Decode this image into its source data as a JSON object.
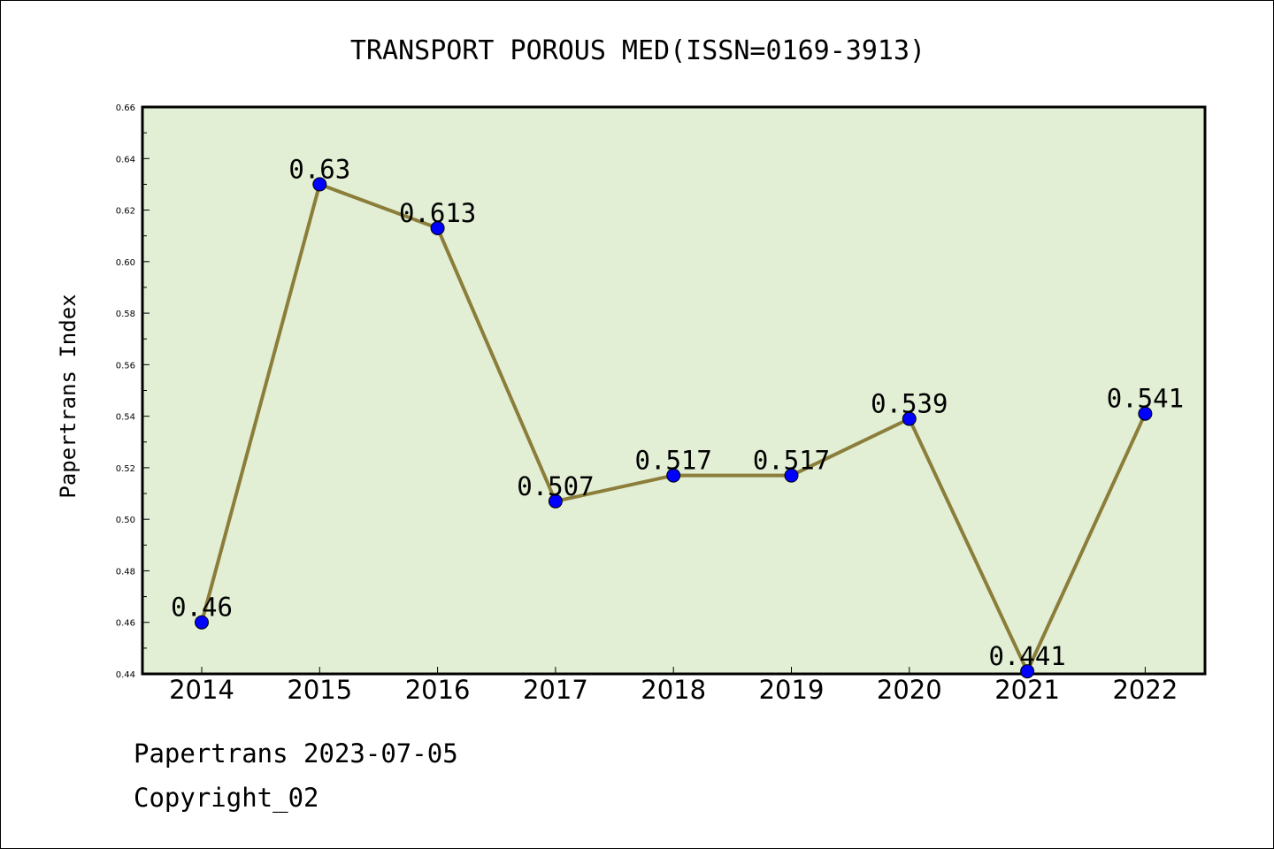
{
  "chart_data": {
    "type": "line",
    "title": "TRANSPORT POROUS MED(ISSN=0169-3913)",
    "xlabel": "",
    "ylabel": "Papertrans Index",
    "categories": [
      "2014",
      "2015",
      "2016",
      "2017",
      "2018",
      "2019",
      "2020",
      "2021",
      "2022"
    ],
    "values": [
      0.46,
      0.63,
      0.613,
      0.507,
      0.517,
      0.517,
      0.539,
      0.441,
      0.541
    ],
    "data_labels": [
      "0.46",
      "0.63",
      "0.613",
      "0.507",
      "0.517",
      "0.517",
      "0.539",
      "0.441",
      "0.541"
    ],
    "ylim": [
      0.44,
      0.66
    ],
    "yticks": [
      "0.44",
      "0.46",
      "0.48",
      "0.50",
      "0.52",
      "0.54",
      "0.56",
      "0.58",
      "0.60",
      "0.62",
      "0.64",
      "0.66"
    ],
    "grid": false,
    "legend": "none",
    "colors": {
      "line": "#8b7d3a",
      "marker": "#0000ff",
      "plot_background": "#e2efd5",
      "axes": "#000000"
    }
  },
  "footer": {
    "line1": "Papertrans 2023-07-05",
    "line2": "Copyright_02"
  }
}
